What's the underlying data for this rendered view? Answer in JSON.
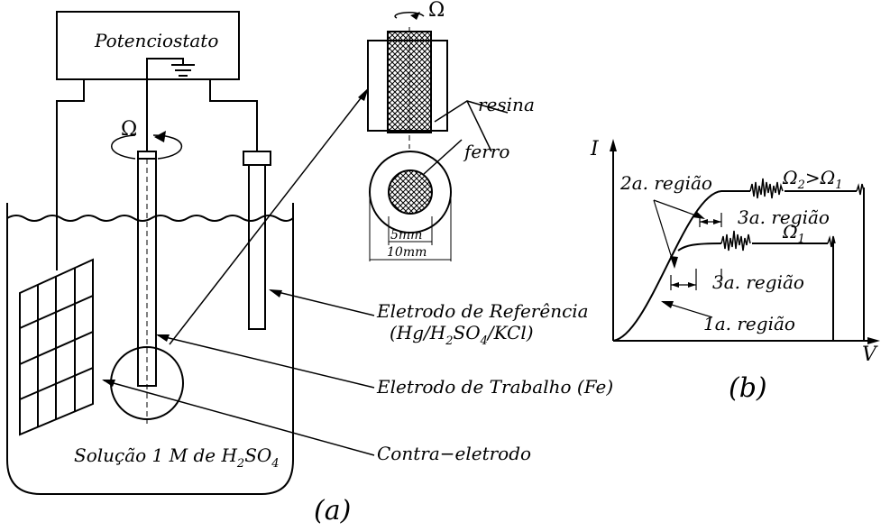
{
  "labels": {
    "potentiostat": "Potenciostato",
    "omega_a": "Ω",
    "omega_detail": "Ω",
    "resin": "resina",
    "iron": "ferro",
    "dim_inner": "5mm",
    "dim_outer": "10mm",
    "ref_electrode_1": "Eletrodo de Referência",
    "ref_electrode_2a": "(Hg/H",
    "ref_electrode_2b": "SO",
    "ref_electrode_2c": "/KCl)",
    "ref_sub_2": "2",
    "ref_sub_4": "4",
    "work_electrode": "Eletrodo de Trabalho (Fe)",
    "counter_electrode": "Contra−eletrodo",
    "solution_a": "Solução 1 M de H",
    "solution_b": "SO",
    "solution_sub_2": "2",
    "solution_sub_4": "4",
    "panel_a": "(a)",
    "panel_b": "(b)",
    "axis_i": "I",
    "axis_v": "V",
    "region_1": "1a. região",
    "region_2": "2a. região",
    "region_3_top": "3a. região",
    "region_3_bottom": "3a. região",
    "omega_compare_a": "Ω",
    "omega_compare_sub2": "2",
    "omega_compare_gt": ">Ω",
    "omega_compare_sub1": "1",
    "omega_1": "Ω",
    "omega_1_sub": "1"
  }
}
